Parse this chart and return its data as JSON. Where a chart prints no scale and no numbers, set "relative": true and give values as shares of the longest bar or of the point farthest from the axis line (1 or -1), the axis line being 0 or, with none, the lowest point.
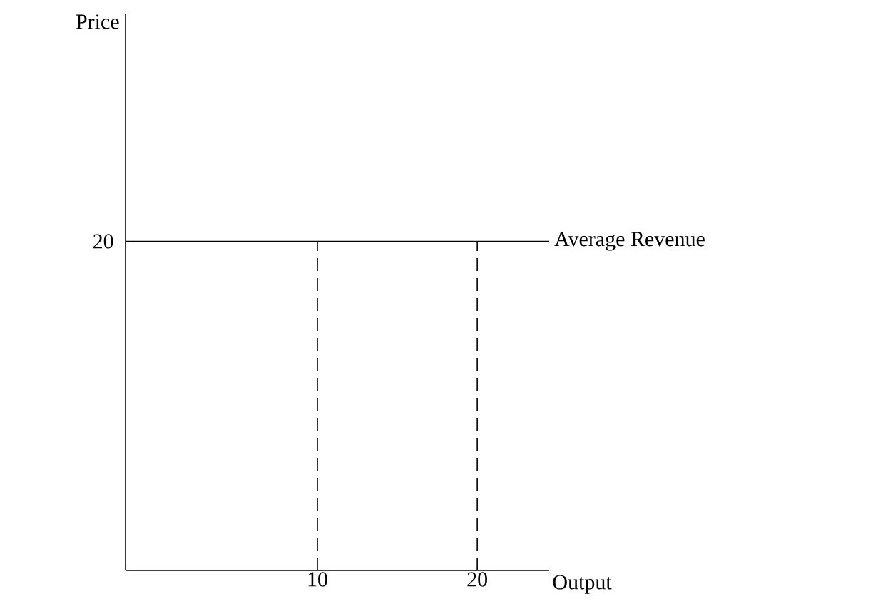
{
  "chart_data": {
    "type": "line",
    "xlabel": "Output",
    "relative": true,
    "xlim": [
      -2,
      24.5
    ],
    "xticks": [
      10,
      20
    ],
    "annotations": [
      {
        "text": "20",
        "x": -2,
        "y": 1
      },
      "Price"
    ],
    "series": [
      {
        "name": "Average Revenue",
        "color": "#000000",
        "x": [
          -2,
          24.5
        ],
        "values": [
          1,
          1
        ],
        "line_style": "solid"
      },
      {
        "color": "#000000",
        "x": [
          10,
          10
        ],
        "values": [
          0,
          1
        ],
        "line_style": "dashed"
      },
      {
        "color": "#000000",
        "x": [
          20,
          20
        ],
        "values": [
          0,
          1
        ],
        "line_style": "dashed"
      }
    ]
  }
}
